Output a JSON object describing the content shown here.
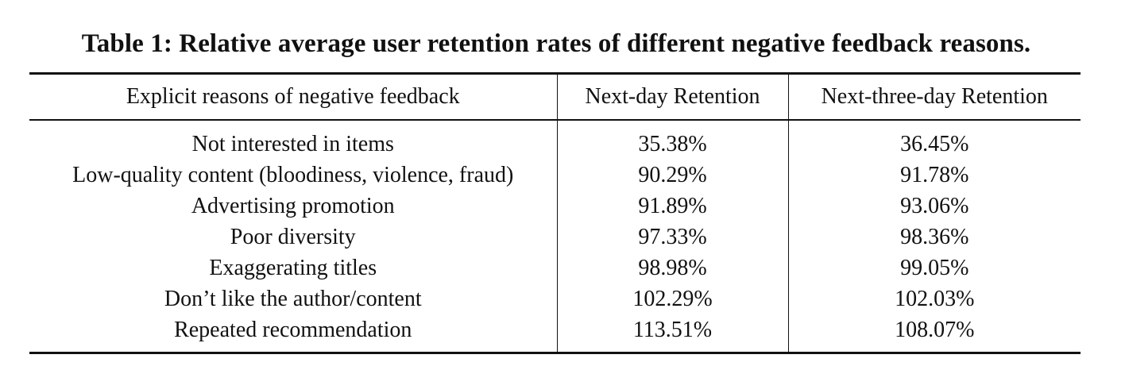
{
  "caption": "Table 1: Relative average user retention rates of different negative feedback reasons.",
  "table": {
    "headers": [
      "Explicit reasons of negative feedback",
      "Next-day Retention",
      "Next-three-day Retention"
    ],
    "rows": [
      [
        "Not interested in items",
        "35.38%",
        "36.45%"
      ],
      [
        "Low-quality content (bloodiness, violence, fraud)",
        "90.29%",
        "91.78%"
      ],
      [
        "Advertising promotion",
        "91.89%",
        "93.06%"
      ],
      [
        "Poor diversity",
        "97.33%",
        "98.36%"
      ],
      [
        "Exaggerating titles",
        "98.98%",
        "99.05%"
      ],
      [
        "Don’t like the author/content",
        "102.29%",
        "102.03%"
      ],
      [
        "Repeated recommendation",
        "113.51%",
        "108.07%"
      ]
    ]
  }
}
